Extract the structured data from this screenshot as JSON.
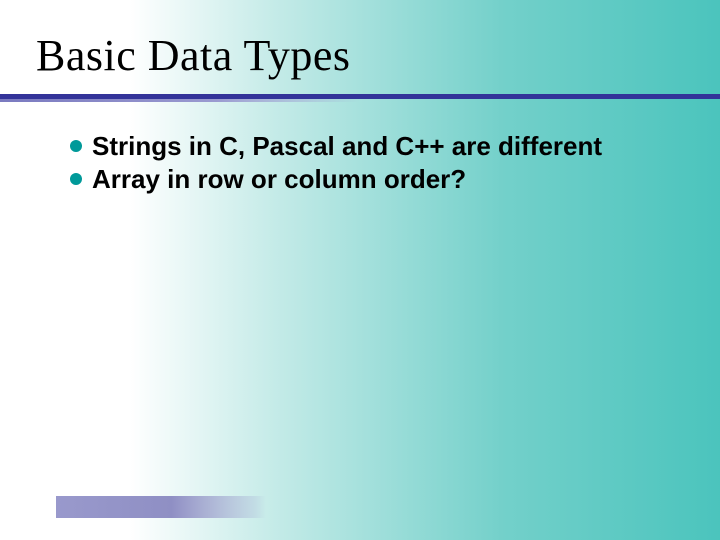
{
  "slide": {
    "title": "Basic Data Types",
    "bullets": [
      "Strings in C, Pascal and C++ are different",
      "Array in row or column order?"
    ],
    "colors": {
      "bullet_dot": "#009999",
      "title_underline": "#333399",
      "footer_bar": "#9999cc",
      "bg_gradient_start": "#ffffff",
      "bg_gradient_end": "#4bc4bd"
    },
    "fonts": {
      "title_family": "Times New Roman",
      "title_size_pt": 33,
      "body_family": "Arial",
      "body_size_pt": 20,
      "body_weight": "bold"
    }
  }
}
